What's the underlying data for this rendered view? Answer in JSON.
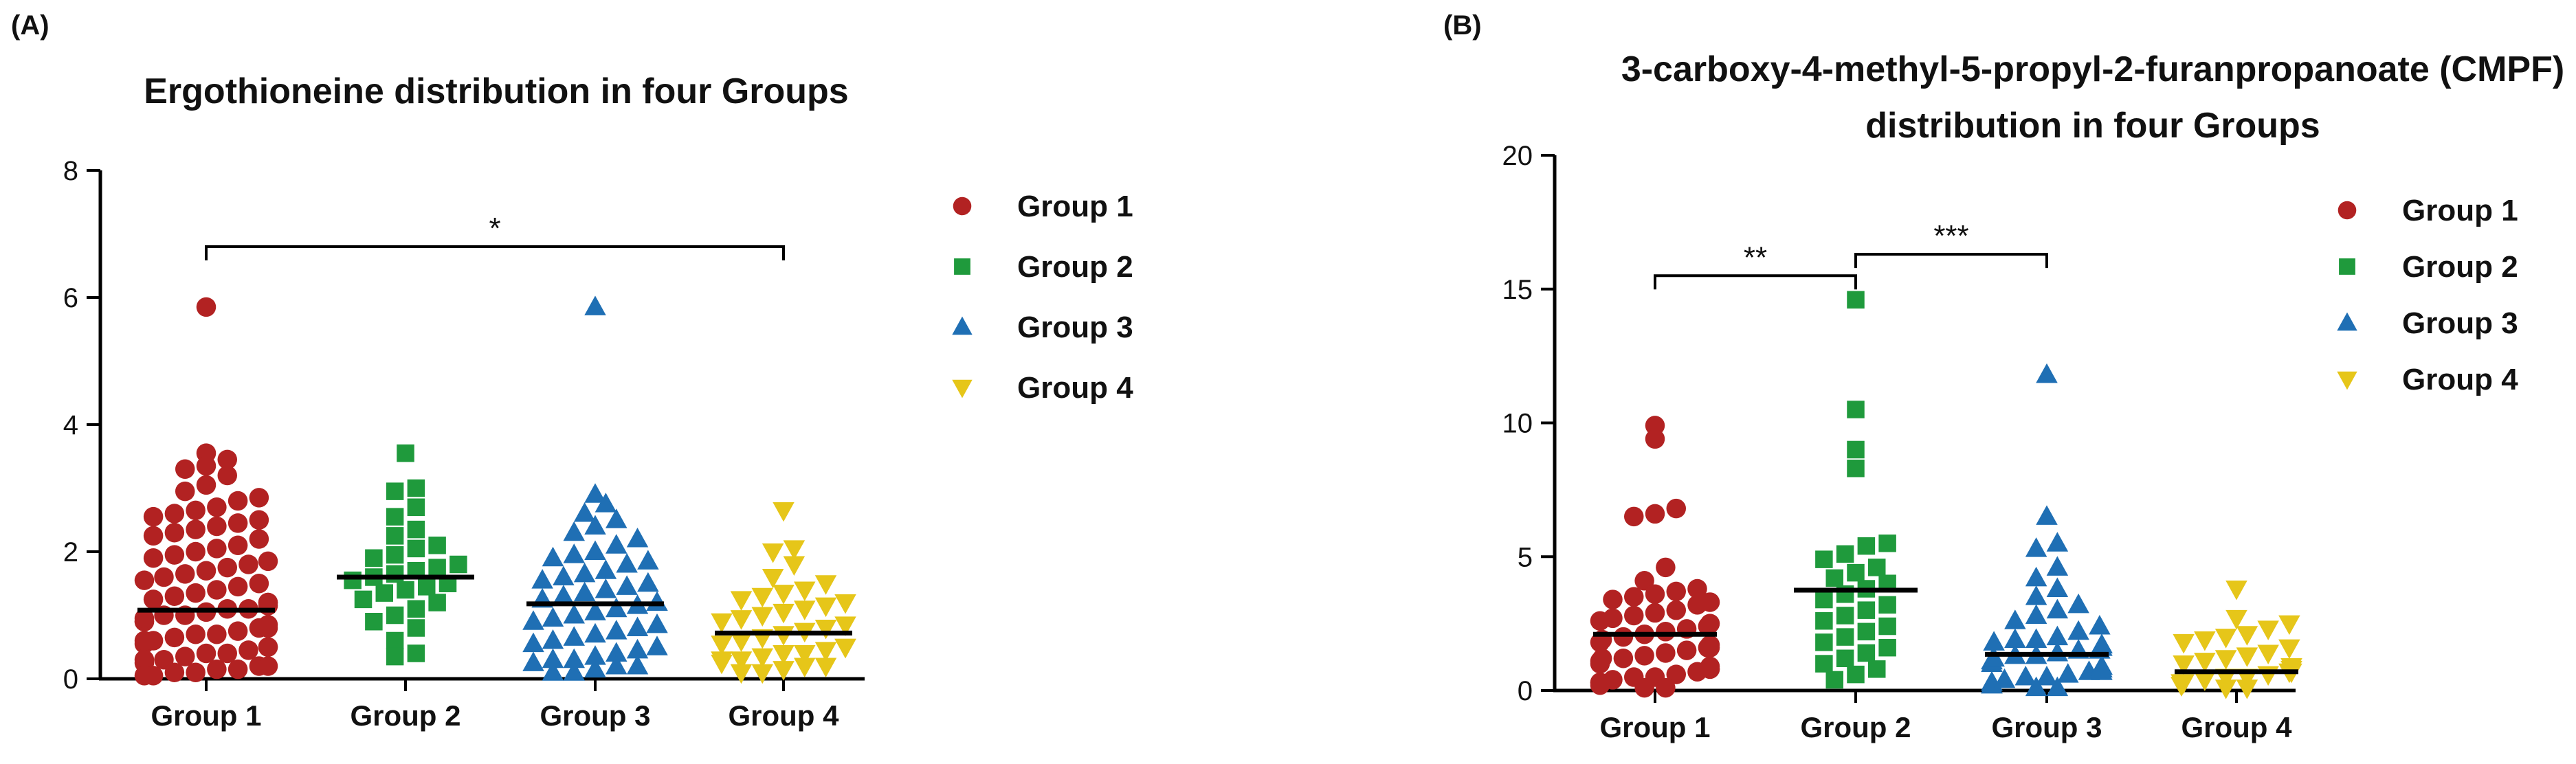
{
  "chart_data": [
    {
      "panel_label": "(A)",
      "type": "scatter",
      "title": "Ergothioneine distribution in four Groups",
      "title_lines": [
        "Ergothioneine distribution in four Groups"
      ],
      "xlabel": "",
      "ylabel": "",
      "ylim": [
        0,
        8
      ],
      "yticks": [
        "0",
        "2",
        "4",
        "6",
        "8"
      ],
      "ytick_values": [
        0,
        2,
        4,
        6,
        8
      ],
      "categories": [
        "Group 1",
        "Group 2",
        "Group 3",
        "Group 4"
      ],
      "series": [
        {
          "name": "Group 1",
          "color": "#B22222",
          "marker": "circle",
          "mean": 1.08,
          "values": [
            5.85,
            3.55,
            3.45,
            3.35,
            3.3,
            3.2,
            3.05,
            2.95,
            2.85,
            2.8,
            2.7,
            2.65,
            2.6,
            2.55,
            2.5,
            2.45,
            2.4,
            2.35,
            2.3,
            2.25,
            2.2,
            2.1,
            2.05,
            2.0,
            1.95,
            1.9,
            1.85,
            1.8,
            1.75,
            1.7,
            1.65,
            1.6,
            1.55,
            1.5,
            1.45,
            1.4,
            1.35,
            1.3,
            1.25,
            1.2,
            1.15,
            1.1,
            1.05,
            1.0,
            0.95,
            0.9,
            0.85,
            0.8,
            0.75,
            0.7,
            0.65,
            0.6,
            0.55,
            0.5,
            0.45,
            0.4,
            0.35,
            0.3,
            0.25,
            0.2,
            0.15,
            0.1,
            0.05,
            0.05,
            0.1,
            0.15,
            0.2,
            0.3,
            0.4,
            0.5,
            0.6,
            0.7,
            0.8,
            0.9,
            1.0,
            1.1,
            1.2
          ]
        },
        {
          "name": "Group 2",
          "color": "#1F9A3C",
          "marker": "square",
          "mean": 1.6,
          "values": [
            3.55,
            3.0,
            2.95,
            2.7,
            2.55,
            2.35,
            2.25,
            2.1,
            2.05,
            1.95,
            1.9,
            1.8,
            1.75,
            1.7,
            1.65,
            1.6,
            1.55,
            1.5,
            1.45,
            1.4,
            1.35,
            1.25,
            1.2,
            1.1,
            1.0,
            0.9,
            0.8,
            0.6,
            0.4,
            0.35
          ]
        },
        {
          "name": "Group 3",
          "color": "#1F6FB4",
          "marker": "triangle-up",
          "mean": 1.18,
          "values": [
            5.85,
            2.9,
            2.75,
            2.6,
            2.5,
            2.4,
            2.3,
            2.2,
            2.1,
            2.0,
            1.95,
            1.9,
            1.85,
            1.8,
            1.7,
            1.65,
            1.6,
            1.55,
            1.5,
            1.45,
            1.4,
            1.35,
            1.3,
            1.25,
            1.2,
            1.15,
            1.1,
            1.05,
            1.0,
            0.95,
            0.9,
            0.85,
            0.8,
            0.75,
            0.7,
            0.65,
            0.6,
            0.55,
            0.5,
            0.45,
            0.4,
            0.35,
            0.3,
            0.25,
            0.2,
            0.15,
            0.1,
            0.1,
            0.2,
            0.3
          ]
        },
        {
          "name": "Group 4",
          "color": "#E6C619",
          "marker": "triangle-down",
          "mean": 0.72,
          "values": [
            2.65,
            2.05,
            2.0,
            1.8,
            1.6,
            1.5,
            1.4,
            1.35,
            1.3,
            1.25,
            1.2,
            1.15,
            1.1,
            1.05,
            1.0,
            0.95,
            0.9,
            0.85,
            0.8,
            0.75,
            0.7,
            0.65,
            0.6,
            0.55,
            0.5,
            0.45,
            0.4,
            0.35,
            0.3,
            0.25,
            0.2,
            0.15,
            0.1,
            0.1,
            0.2,
            0.3,
            0.4,
            0.5
          ]
        }
      ],
      "significance": [
        {
          "from": "Group 1",
          "to": "Group 4",
          "y": 6.8,
          "label": "*"
        }
      ],
      "legend": [
        "Group 1",
        "Group 2",
        "Group 3",
        "Group 4"
      ],
      "legend_position": "right"
    },
    {
      "panel_label": "(B)",
      "type": "scatter",
      "title": "3-carboxy-4-methyl-5-propyl-2-furanpropanoate (CMPF) distribution in four Groups",
      "title_lines": [
        "3-carboxy-4-methyl-5-propyl-2-furanpropanoate (CMPF)",
        "distribution in four Groups"
      ],
      "xlabel": "",
      "ylabel": "",
      "ylim": [
        0,
        20
      ],
      "yticks": [
        "0",
        "5",
        "10",
        "15",
        "20"
      ],
      "ytick_values": [
        0,
        5,
        10,
        15,
        20
      ],
      "categories": [
        "Group 1",
        "Group 2",
        "Group 3",
        "Group 4"
      ],
      "series": [
        {
          "name": "Group 1",
          "color": "#B22222",
          "marker": "circle",
          "mean": 2.1,
          "values": [
            9.9,
            9.4,
            6.8,
            6.6,
            6.5,
            4.6,
            4.1,
            3.8,
            3.7,
            3.6,
            3.5,
            3.4,
            3.3,
            3.2,
            3.0,
            2.9,
            2.8,
            2.7,
            2.6,
            2.5,
            2.4,
            2.3,
            2.2,
            2.1,
            2.0,
            1.9,
            1.8,
            1.7,
            1.6,
            1.5,
            1.4,
            1.3,
            1.2,
            1.1,
            1.0,
            0.9,
            0.8,
            0.7,
            0.6,
            0.5,
            0.4,
            0.3,
            0.2,
            0.1,
            0.1,
            0.3,
            0.5,
            0.8,
            1.2,
            1.6
          ]
        },
        {
          "name": "Group 2",
          "color": "#1F9A3C",
          "marker": "square",
          "mean": 3.75,
          "values": [
            14.6,
            10.5,
            9.0,
            8.3,
            5.5,
            5.4,
            5.1,
            4.9,
            4.6,
            4.4,
            4.2,
            4.0,
            3.8,
            3.6,
            3.4,
            3.2,
            3.0,
            2.8,
            2.6,
            2.4,
            2.2,
            2.0,
            1.8,
            1.6,
            1.4,
            1.2,
            1.0,
            0.8,
            0.6,
            0.4
          ]
        },
        {
          "name": "Group 3",
          "color": "#1F6FB4",
          "marker": "triangle-up",
          "mean": 1.35,
          "values": [
            11.8,
            6.5,
            5.5,
            5.3,
            4.6,
            4.2,
            3.8,
            3.5,
            3.2,
            3.0,
            2.8,
            2.6,
            2.4,
            2.2,
            2.0,
            1.9,
            1.8,
            1.7,
            1.6,
            1.5,
            1.4,
            1.3,
            1.2,
            1.1,
            1.0,
            0.9,
            0.8,
            0.7,
            0.6,
            0.5,
            0.4,
            0.3,
            0.2,
            0.1,
            0.1,
            0.2,
            0.3,
            0.5,
            0.7,
            0.9,
            1.1,
            1.3,
            1.5,
            1.7,
            1.9
          ]
        },
        {
          "name": "Group 4",
          "color": "#E6C619",
          "marker": "triangle-down",
          "mean": 0.7,
          "values": [
            3.8,
            2.7,
            2.5,
            2.3,
            2.1,
            2.0,
            1.9,
            1.8,
            1.6,
            1.4,
            1.3,
            1.2,
            1.1,
            1.0,
            0.9,
            0.8,
            0.7,
            0.6,
            0.5,
            0.4,
            0.3,
            0.2,
            0.1,
            0.1,
            0.2,
            0.3,
            0.5,
            0.7
          ]
        }
      ],
      "significance": [
        {
          "from": "Group 1",
          "to": "Group 2",
          "y": 15.5,
          "label": "**"
        },
        {
          "from": "Group 2",
          "to": "Group 3",
          "y": 16.3,
          "label": "***"
        }
      ],
      "legend": [
        "Group 1",
        "Group 2",
        "Group 3",
        "Group 4"
      ],
      "legend_position": "right"
    }
  ]
}
